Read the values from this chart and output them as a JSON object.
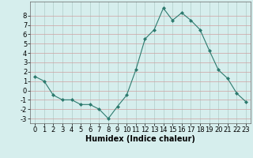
{
  "x": [
    0,
    1,
    2,
    3,
    4,
    5,
    6,
    7,
    8,
    9,
    10,
    11,
    12,
    13,
    14,
    15,
    16,
    17,
    18,
    19,
    20,
    21,
    22,
    23
  ],
  "y": [
    1.5,
    1.0,
    -0.5,
    -1.0,
    -1.0,
    -1.5,
    -1.5,
    -2.0,
    -3.0,
    -1.7,
    -0.5,
    2.2,
    5.5,
    6.5,
    8.8,
    7.5,
    8.3,
    7.5,
    6.5,
    4.3,
    2.2,
    1.3,
    -0.3,
    -1.2
  ],
  "xlabel": "Humidex (Indice chaleur)",
  "ylim": [
    -3.5,
    9.5
  ],
  "xlim": [
    -0.5,
    23.5
  ],
  "yticks": [
    -3,
    -2,
    -1,
    0,
    1,
    2,
    3,
    4,
    5,
    6,
    7,
    8
  ],
  "xticks": [
    0,
    1,
    2,
    3,
    4,
    5,
    6,
    7,
    8,
    9,
    10,
    11,
    12,
    13,
    14,
    15,
    16,
    17,
    18,
    19,
    20,
    21,
    22,
    23
  ],
  "line_color": "#2d7a6e",
  "marker_color": "#2d7a6e",
  "bg_color": "#d6eeed",
  "grid_color": "#b0ccc9",
  "grid_major_color": "#c0b8b8",
  "xlabel_fontsize": 7,
  "tick_fontsize": 6
}
